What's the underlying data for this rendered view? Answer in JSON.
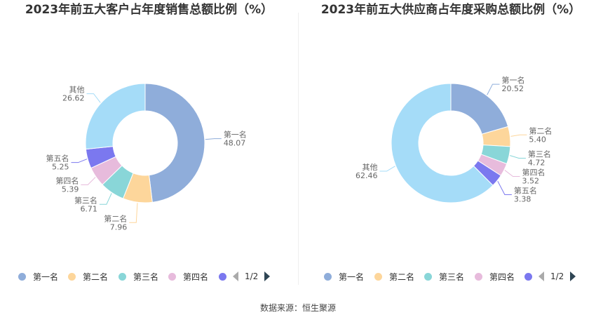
{
  "colors": [
    "#8fadda",
    "#fdd69b",
    "#89d6d8",
    "#e7bbdc",
    "#7b78ef",
    "#a5dcf8"
  ],
  "source": "数据来源：恒生聚源",
  "legend_page": "1/2",
  "chart_data": [
    {
      "type": "pie",
      "style": "donut",
      "title": "2023年前五大客户占年度销售总额比例（%）",
      "categories": [
        "第一名",
        "第二名",
        "第三名",
        "第四名",
        "第五名",
        "其他"
      ],
      "values": [
        48.07,
        7.96,
        6.71,
        5.39,
        5.25,
        26.62
      ],
      "value_labels": [
        "48.07",
        "7.96",
        "6.71",
        "5.39",
        "5.25",
        "26.62"
      ],
      "legend_visible": [
        "第一名",
        "第二名",
        "第三名",
        "第四名"
      ],
      "legend_placement": "bottom"
    },
    {
      "type": "pie",
      "style": "donut",
      "title": "2023年前五大供应商占年度采购总额比例（%）",
      "categories": [
        "第一名",
        "第二名",
        "第三名",
        "第四名",
        "第五名",
        "其他"
      ],
      "values": [
        20.52,
        5.4,
        4.72,
        3.52,
        3.38,
        62.46
      ],
      "value_labels": [
        "20.52",
        "5.40",
        "4.72",
        "3.52",
        "3.38",
        "62.46"
      ],
      "legend_visible": [
        "第一名",
        "第二名",
        "第三名",
        "第四名"
      ],
      "legend_placement": "bottom"
    }
  ]
}
